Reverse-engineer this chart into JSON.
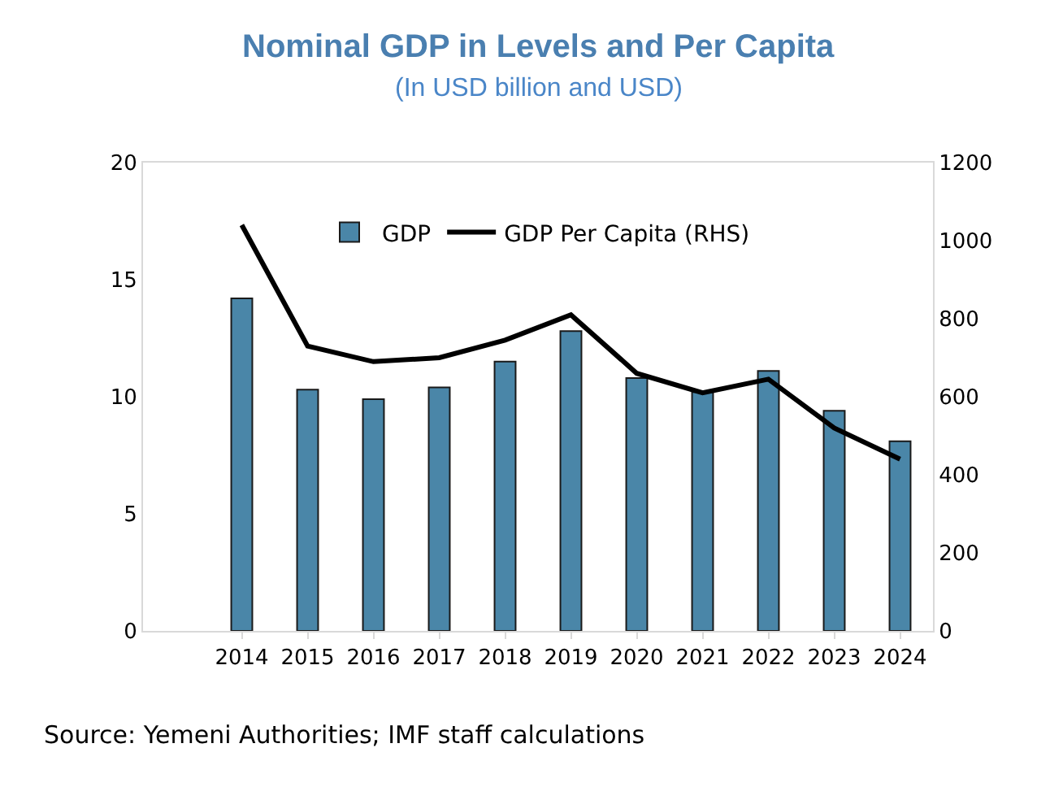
{
  "chart_data": {
    "type": "bar",
    "title": "Nominal GDP in Levels and Per Capita",
    "subtitle": "(In USD billion and USD)",
    "categories": [
      null,
      "2014",
      "2015",
      "2016",
      "2017",
      "2018",
      "2019",
      "2020",
      "2021",
      "2022",
      "2023",
      "2024"
    ],
    "series": [
      {
        "name": "GDP",
        "color": "#4a86a8",
        "values": [
          null,
          14.2,
          10.3,
          9.9,
          10.4,
          11.5,
          12.8,
          10.8,
          10.2,
          11.1,
          9.4,
          8.1
        ]
      },
      {
        "name": "GDP Per Capita (RHS)",
        "type": "line",
        "axis": "y2",
        "color": "#000000",
        "values": [
          null,
          1040,
          730,
          690,
          700,
          745,
          810,
          660,
          610,
          645,
          520,
          440
        ]
      }
    ],
    "ylim": [
      0,
      20
    ],
    "yticks": [
      0,
      5,
      10,
      15,
      20
    ],
    "y2lim": [
      0,
      1200
    ],
    "y2ticks": [
      0,
      200,
      400,
      600,
      800,
      1000,
      1200
    ],
    "grid": false,
    "legend": "top",
    "marker": "none",
    "line_style": "solid",
    "annotations": [
      "Source: Yemeni Authorities; IMF staff calculations"
    ]
  }
}
